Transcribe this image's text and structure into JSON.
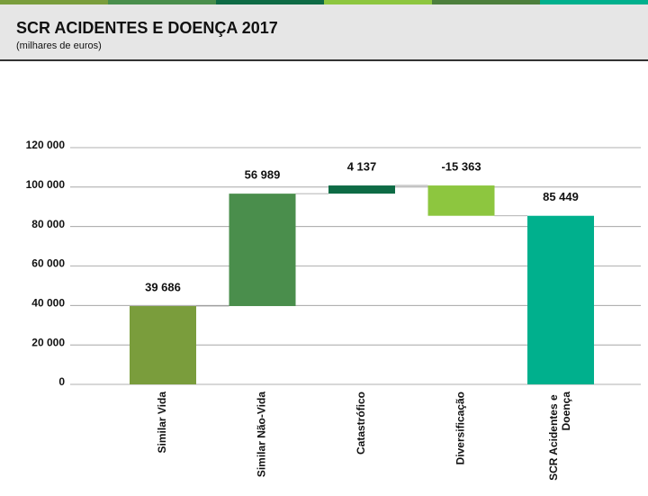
{
  "chart_data": {
    "type": "waterfall",
    "title": "SCR ACIDENTES E DOENÇA 2017",
    "subtitle": "(milhares de euros)",
    "categories": [
      "Similar Vida",
      "Similar Não-Vida",
      "Catastrófico",
      "Diversificação",
      "SCR Acidentes e Doença"
    ],
    "values": [
      39686,
      56989,
      4137,
      -15363,
      85449
    ],
    "value_labels": [
      "39 686",
      "56 989",
      "4 137",
      "-15 363",
      "85 449"
    ],
    "totals": [
      false,
      false,
      false,
      false,
      true
    ],
    "colors": [
      "#7a9d3c",
      "#4a8e4c",
      "#0e6b45",
      "#8dc63f",
      "#00b08d"
    ],
    "ylim": [
      0,
      120000
    ],
    "yticks": [
      0,
      {
        "value": 20000,
        "label": "20 000"
      },
      {
        "value": 40000,
        "label": "40 000"
      },
      {
        "value": 60000,
        "label": "60 000"
      },
      {
        "value": 80000,
        "label": "80 000"
      },
      {
        "value": 100000,
        "label": "100 000"
      },
      {
        "value": 120000,
        "label": "120 000"
      }
    ],
    "grid": true
  }
}
